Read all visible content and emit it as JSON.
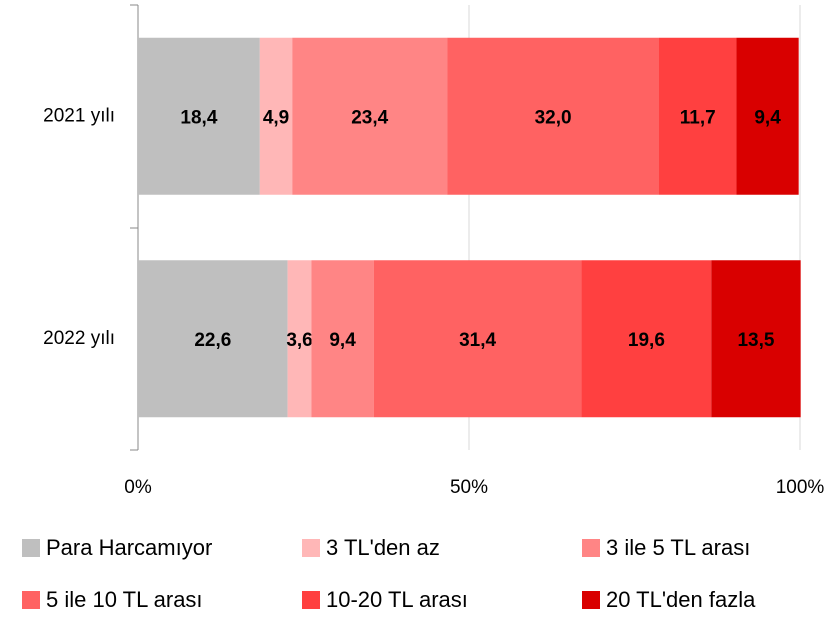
{
  "chart_data": {
    "type": "stacked-bar-horizontal",
    "categories": [
      "2021 yılı",
      "2022 yılı"
    ],
    "series": [
      {
        "name": "Para Harcamıyor",
        "color": "#bfbfbf",
        "values": [
          18.4,
          22.6
        ],
        "value_labels": [
          "18,4",
          "22,6"
        ]
      },
      {
        "name": "3 TL'den az",
        "color": "#ffb7b7",
        "values": [
          4.9,
          3.6
        ],
        "value_labels": [
          "4,9",
          "3,6"
        ]
      },
      {
        "name": "3 ile 5 TL arası",
        "color": "#ff8585",
        "values": [
          23.4,
          9.4
        ],
        "value_labels": [
          "23,4",
          "9,4"
        ]
      },
      {
        "name": "5 ile 10 TL arası",
        "color": "#ff6262",
        "values": [
          32.0,
          31.4
        ],
        "value_labels": [
          "32,0",
          "31,4"
        ]
      },
      {
        "name": "10-20 TL arası",
        "color": "#ff4040",
        "values": [
          11.7,
          19.6
        ],
        "value_labels": [
          "11,7",
          "19,6"
        ]
      },
      {
        "name": "20 TL'den fazla",
        "color": "#d90000",
        "values": [
          9.4,
          13.5
        ],
        "value_labels": [
          "9,4",
          "13,5"
        ]
      }
    ],
    "xlim": [
      0,
      100
    ],
    "xticks": [
      {
        "value": 0,
        "label": "0%"
      },
      {
        "value": 50,
        "label": "50%"
      },
      {
        "value": 100,
        "label": "100%"
      }
    ],
    "grid": true,
    "legend": "bottom"
  }
}
